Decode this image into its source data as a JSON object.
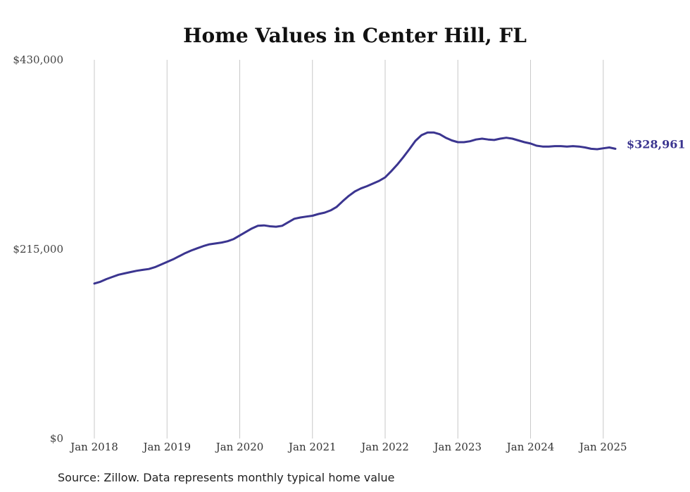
{
  "chart_data": {
    "type": "line",
    "title": "Home Values in Center Hill, FL",
    "source": "Source: Zillow. Data represents monthly typical home value",
    "ylim": [
      0,
      430000
    ],
    "yticks": [
      0,
      215000,
      430000
    ],
    "ytick_labels": [
      "$0",
      "$215,000",
      "$430,000"
    ],
    "xlim": [
      "2018-01",
      "2025-03"
    ],
    "xticks": [
      "2018-01",
      "2019-01",
      "2020-01",
      "2021-01",
      "2022-01",
      "2023-01",
      "2024-01",
      "2025-01"
    ],
    "xtick_labels": [
      "Jan 2018",
      "Jan 2019",
      "Jan 2020",
      "Jan 2021",
      "Jan 2022",
      "Jan 2023",
      "Jan 2024",
      "Jan 2025"
    ],
    "grid": "vertical",
    "line_color": "#3b3590",
    "end_label": "$328,961",
    "series": [
      {
        "x": [
          "2018-01",
          "2018-02",
          "2018-03",
          "2018-04",
          "2018-05",
          "2018-06",
          "2018-07",
          "2018-08",
          "2018-09",
          "2018-10",
          "2018-11",
          "2018-12",
          "2019-01",
          "2019-02",
          "2019-03",
          "2019-04",
          "2019-05",
          "2019-06",
          "2019-07",
          "2019-08",
          "2019-09",
          "2019-10",
          "2019-11",
          "2019-12",
          "2020-01",
          "2020-02",
          "2020-03",
          "2020-04",
          "2020-05",
          "2020-06",
          "2020-07",
          "2020-08",
          "2020-09",
          "2020-10",
          "2020-11",
          "2020-12",
          "2021-01",
          "2021-02",
          "2021-03",
          "2021-04",
          "2021-05",
          "2021-06",
          "2021-07",
          "2021-08",
          "2021-09",
          "2021-10",
          "2021-11",
          "2021-12",
          "2022-01",
          "2022-02",
          "2022-03",
          "2022-04",
          "2022-05",
          "2022-06",
          "2022-07",
          "2022-08",
          "2022-09",
          "2022-10",
          "2022-11",
          "2022-12",
          "2023-01",
          "2023-02",
          "2023-03",
          "2023-04",
          "2023-05",
          "2023-06",
          "2023-07",
          "2023-08",
          "2023-09",
          "2023-10",
          "2023-11",
          "2023-12",
          "2024-01",
          "2024-02",
          "2024-03",
          "2024-04",
          "2024-05",
          "2024-06",
          "2024-07",
          "2024-08",
          "2024-09",
          "2024-10",
          "2024-11",
          "2024-12",
          "2025-01",
          "2025-02",
          "2025-03"
        ],
        "values": [
          176000,
          178000,
          181000,
          183500,
          186000,
          187500,
          189000,
          190500,
          191500,
          192500,
          194500,
          197500,
          200500,
          203500,
          207000,
          210500,
          213500,
          216000,
          218500,
          220500,
          221500,
          222500,
          224000,
          226500,
          230500,
          234500,
          238500,
          241500,
          242000,
          241000,
          240500,
          241500,
          245500,
          249500,
          251000,
          252000,
          253000,
          255000,
          256500,
          259000,
          263000,
          269500,
          275500,
          280500,
          284000,
          286500,
          289500,
          292500,
          296500,
          303500,
          311000,
          319500,
          328500,
          338000,
          344500,
          347500,
          347500,
          345500,
          341500,
          338500,
          336500,
          336500,
          337500,
          339500,
          340500,
          339500,
          339000,
          340500,
          341500,
          340500,
          338500,
          336500,
          335000,
          332500,
          331500,
          331500,
          332000,
          332000,
          331500,
          332000,
          331500,
          330500,
          329000,
          328500,
          329500,
          330500,
          328961
        ]
      }
    ]
  }
}
